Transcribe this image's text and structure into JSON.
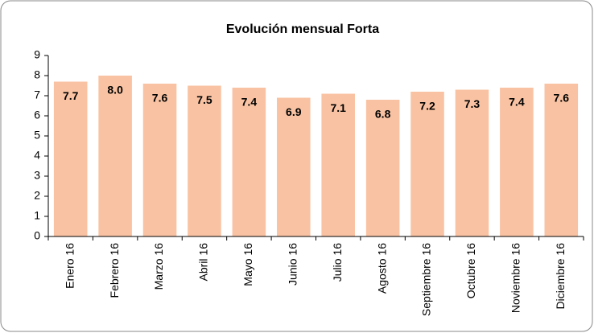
{
  "chart_data": {
    "type": "bar",
    "title": "Evolución mensual Forta",
    "categories": [
      "Enero 16",
      "Febrero 16",
      "Marzo 16",
      "Abril 16",
      "Mayo 16",
      "Junio 16",
      "Julio 16",
      "Agosto 16",
      "Septiembre 16",
      "Octubre 16",
      "Noviembre 16",
      "Diciembre 16"
    ],
    "values": [
      7.7,
      8.0,
      7.6,
      7.5,
      7.4,
      6.9,
      7.1,
      6.8,
      7.2,
      7.3,
      7.4,
      7.6
    ],
    "value_labels": [
      "7.7",
      "8.0",
      "7.6",
      "7.5",
      "7.4",
      "6.9",
      "7.1",
      "6.8",
      "7.2",
      "7.3",
      "7.4",
      "7.6"
    ],
    "color": "#f9c3a3",
    "ylim": [
      0,
      9
    ],
    "yticks": [
      0,
      1,
      2,
      3,
      4,
      5,
      6,
      7,
      8,
      9
    ],
    "grid": false
  }
}
